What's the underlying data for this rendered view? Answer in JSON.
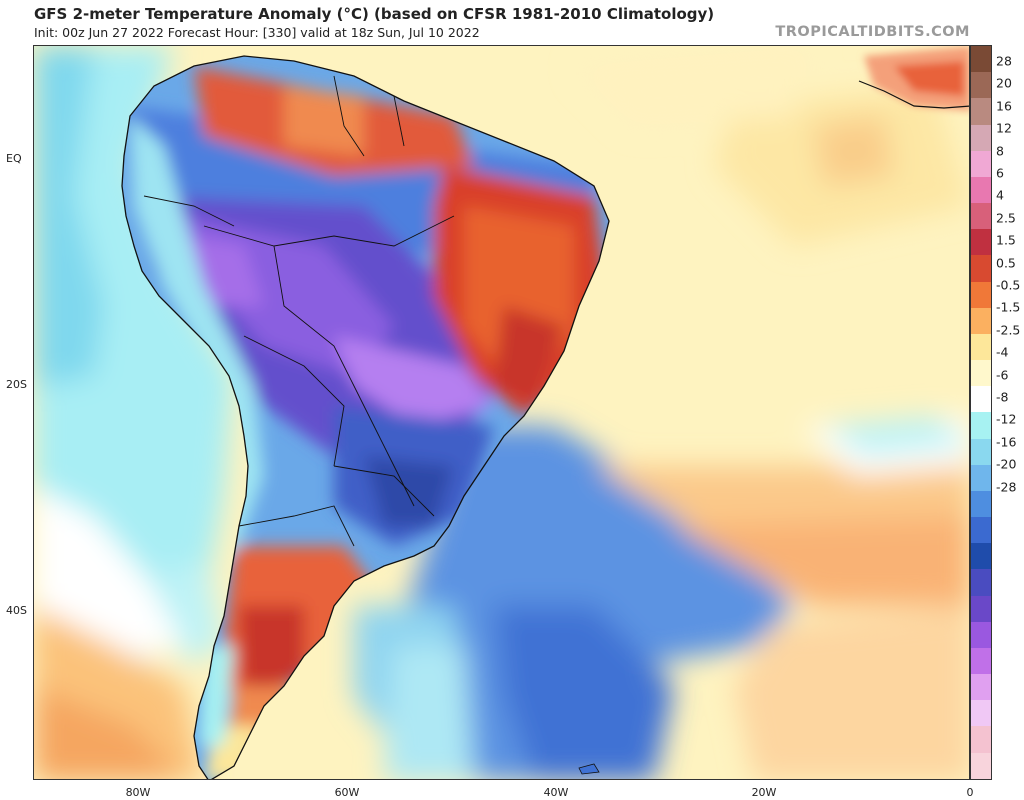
{
  "header": {
    "title": "GFS 2-meter Temperature Anomaly (°C) (based on CFSR 1981-2010 Climatology)",
    "subtitle": "Init: 00z Jun 27 2022   Forecast Hour: [330]   valid at 18z Sun, Jul 10 2022",
    "credit": "TROPICALTIDBITS.COM"
  },
  "map": {
    "lat_labels": [
      "EQ",
      "20S",
      "40S"
    ],
    "lon_labels": [
      "80W",
      "60W",
      "40W",
      "20W",
      "0"
    ],
    "features": {
      "south_america": "south-america-landmass",
      "africa": "west-africa-landmass"
    }
  },
  "colorbar": {
    "labels": [
      "28",
      "20",
      "16",
      "12",
      "8",
      "6",
      "4",
      "2.5",
      "1.5",
      "0.5",
      "-0.5",
      "-1.5",
      "-2.5",
      "-4",
      "-6",
      "-8",
      "-12",
      "-16",
      "-20",
      "-28"
    ],
    "colors": [
      "#7a4a35",
      "#9b6856",
      "#b98a80",
      "#d5a8b4",
      "#f0a8d4",
      "#e878b0",
      "#d8607a",
      "#c03040",
      "#d84a30",
      "#f07838",
      "#fbb060",
      "#fde79a",
      "#fff8cc",
      "#ffffff",
      "#a7f2f2",
      "#8ad8ef",
      "#6fb6ec",
      "#4e8ee0",
      "#3b6ad0",
      "#1f4cab",
      "#4a4cc0",
      "#6a48c8",
      "#9a58e0",
      "#c070e8",
      "#e0a0f0",
      "#f0c8f5",
      "#f4c2d0",
      "#f8d4dc"
    ]
  }
}
